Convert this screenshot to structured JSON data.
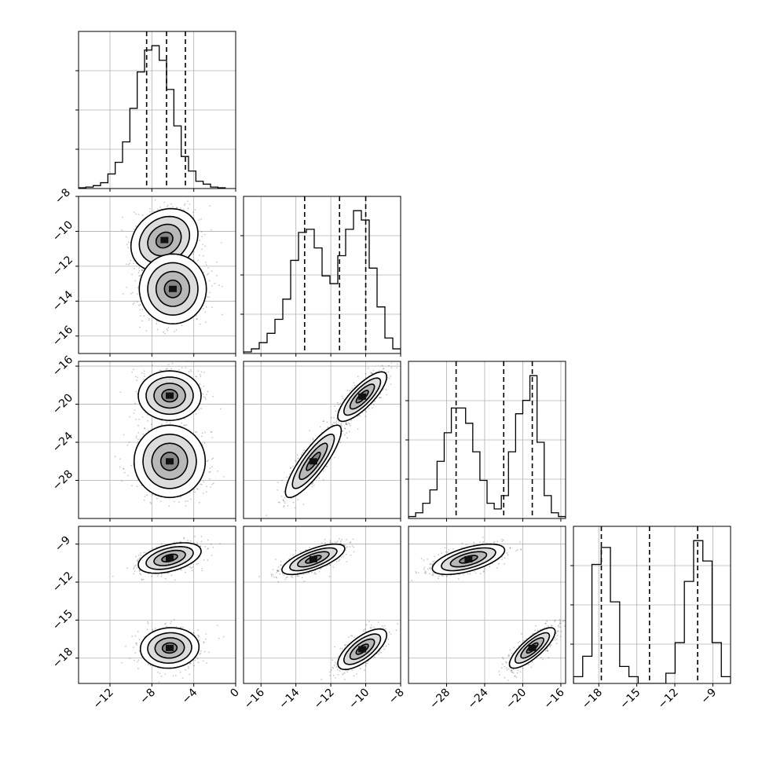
{
  "chart_data": {
    "type": "corner",
    "dimensions": 4,
    "parameters": [
      {
        "range": [
          -15,
          0
        ],
        "ticks": [
          -12,
          -8,
          -4,
          0
        ],
        "tick_labels": [
          "−12",
          "−8",
          "−4",
          "0"
        ]
      },
      {
        "range": [
          -17,
          -8
        ],
        "ticks": [
          -16,
          -14,
          -12,
          -10,
          -8
        ],
        "tick_labels": [
          "−16",
          "−14",
          "−12",
          "−10",
          "−8"
        ]
      },
      {
        "range": [
          -32,
          -15.5
        ],
        "ticks": [
          -28,
          -24,
          -20,
          -16
        ],
        "tick_labels": [
          "−28",
          "−24",
          "−20",
          "−16"
        ]
      },
      {
        "range": [
          -20,
          -7.6
        ],
        "ticks": [
          -18,
          -15,
          -12,
          -9
        ],
        "tick_labels": [
          "−18",
          "−15",
          "−12",
          "−9"
        ]
      }
    ],
    "quantiles": [
      [
        -8.5,
        -6.6,
        -4.8
      ],
      [
        -13.5,
        -11.5,
        -10.0
      ],
      [
        -27.0,
        -22.0,
        -19.0
      ],
      [
        -17.8,
        -14.0,
        -10.2
      ]
    ],
    "histograms": [
      {
        "edges_range": [
          -15,
          -1
        ],
        "counts": [
          0.5,
          1,
          2,
          4,
          10,
          18,
          32,
          55,
          80,
          95,
          98,
          88,
          68,
          43,
          22,
          12,
          5,
          3,
          1,
          0.5
        ]
      },
      {
        "edges_range": [
          -17,
          -8
        ],
        "counts": [
          1,
          3,
          7,
          13,
          22,
          35,
          60,
          78,
          80,
          68,
          50,
          45,
          63,
          80,
          92,
          86,
          55,
          30,
          10,
          3
        ]
      },
      {
        "edges_range": [
          -32,
          -15.5
        ],
        "counts": [
          1,
          3,
          8,
          15,
          30,
          45,
          58,
          58,
          50,
          35,
          20,
          8,
          5,
          12,
          35,
          55,
          62,
          75,
          40,
          12,
          3,
          1
        ]
      },
      {
        "edges_range": [
          -20,
          -7.6
        ],
        "counts": [
          2,
          8,
          35,
          40,
          24,
          5,
          2,
          0,
          0,
          0,
          3,
          12,
          30,
          42,
          36,
          12,
          2
        ]
      }
    ],
    "scatter_panels": [
      {
        "row": 1,
        "col": 0,
        "modes": [
          {
            "x": -6.8,
            "y": -10.5,
            "sx": 1.6,
            "sy": 0.9,
            "rho": 0.2
          },
          {
            "x": -6.0,
            "y": -13.3,
            "sx": 1.6,
            "sy": 1.0,
            "rho": 0.0
          }
        ]
      },
      {
        "row": 2,
        "col": 0,
        "modes": [
          {
            "x": -6.3,
            "y": -19.1,
            "sx": 1.5,
            "sy": 1.3,
            "rho": 0.0
          },
          {
            "x": -6.3,
            "y": -26.0,
            "sx": 1.7,
            "sy": 1.9,
            "rho": 0.0
          }
        ]
      },
      {
        "row": 2,
        "col": 1,
        "modes": [
          {
            "x": -10.2,
            "y": -19.2,
            "sx": 0.7,
            "sy": 1.3,
            "rho": 0.8
          },
          {
            "x": -13.0,
            "y": -26.0,
            "sx": 0.8,
            "sy": 1.9,
            "rho": 0.85
          }
        ]
      },
      {
        "row": 3,
        "col": 0,
        "modes": [
          {
            "x": -6.3,
            "y": -10.1,
            "sx": 1.5,
            "sy": 0.6,
            "rho": 0.45
          },
          {
            "x": -6.3,
            "y": -17.2,
            "sx": 1.4,
            "sy": 0.8,
            "rho": 0.05
          }
        ]
      },
      {
        "row": 3,
        "col": 1,
        "modes": [
          {
            "x": -13.0,
            "y": -10.2,
            "sx": 0.9,
            "sy": 0.6,
            "rho": 0.7
          },
          {
            "x": -10.2,
            "y": -17.3,
            "sx": 0.7,
            "sy": 0.8,
            "rho": 0.7
          }
        ]
      },
      {
        "row": 3,
        "col": 2,
        "modes": [
          {
            "x": -25.7,
            "y": -10.2,
            "sx": 1.9,
            "sy": 0.6,
            "rho": 0.6
          },
          {
            "x": -19.0,
            "y": -17.2,
            "sx": 1.2,
            "sy": 0.8,
            "rho": 0.8
          }
        ]
      }
    ],
    "contour_levels_sigma": [
      0.5,
      1.0,
      1.5,
      2.0
    ],
    "grid": true
  }
}
